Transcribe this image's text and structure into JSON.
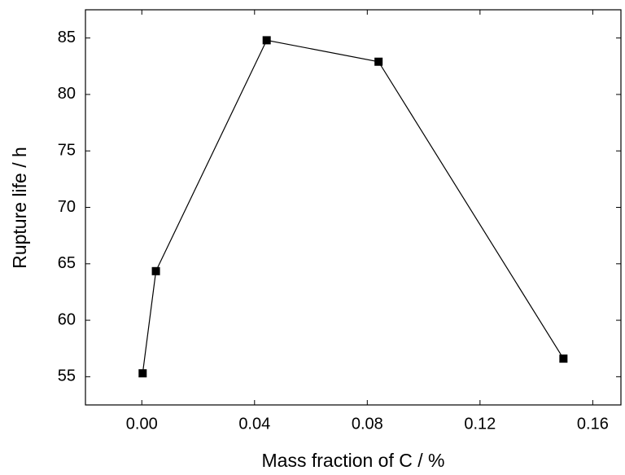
{
  "chart_data": {
    "type": "line",
    "x_label": "Mass fraction of C / %",
    "y_label": "Rupture life / h",
    "x": [
      0.0003,
      0.005,
      0.0443,
      0.084,
      0.1496
    ],
    "values": [
      55.3,
      64.35,
      84.8,
      82.9,
      56.6
    ],
    "color": "#000000",
    "xlim": [
      -0.02,
      0.17
    ],
    "xticks": [
      {
        "value": 0,
        "label": "0.00"
      },
      {
        "value": 0.04,
        "label": "0.04"
      },
      {
        "value": 0.08,
        "label": "0.08"
      },
      {
        "value": 0.12,
        "label": "0.12"
      },
      {
        "value": 0.16,
        "label": "0.16"
      }
    ],
    "ylim": [
      52.5,
      87.5
    ],
    "yticks": [
      55,
      60,
      65,
      70,
      75,
      80,
      85
    ],
    "grid": false
  }
}
